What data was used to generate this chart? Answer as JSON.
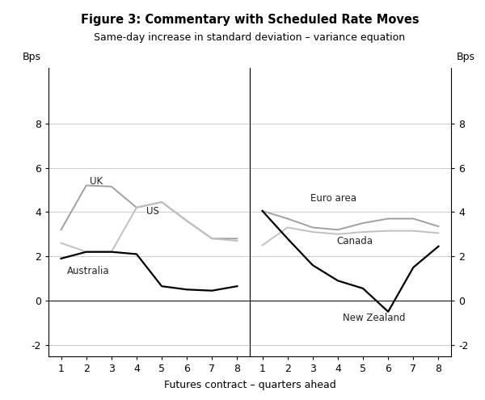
{
  "title": "Figure 3: Commentary with Scheduled Rate Moves",
  "subtitle": "Same-day increase in standard deviation – variance equation",
  "ylabel_left": "Bps",
  "ylabel_right": "Bps",
  "xlabel": "Futures contract – quarters ahead",
  "ylim": [
    -2.5,
    10.5
  ],
  "yticks": [
    -2,
    0,
    2,
    4,
    6,
    8
  ],
  "ytick_labels": [
    "-2",
    "0",
    "2",
    "4",
    "6",
    "8"
  ],
  "left_panel": {
    "x": [
      1,
      2,
      3,
      4,
      5,
      6,
      7,
      8
    ],
    "UK": [
      3.2,
      5.2,
      5.15,
      4.2,
      4.45,
      3.6,
      2.8,
      2.8
    ],
    "US": [
      2.6,
      2.2,
      2.2,
      4.2,
      4.45,
      3.6,
      2.8,
      2.7
    ],
    "Australia": [
      1.9,
      2.2,
      2.2,
      2.1,
      0.65,
      0.5,
      0.45,
      0.65
    ]
  },
  "right_panel": {
    "x": [
      1,
      2,
      3,
      4,
      5,
      6,
      7,
      8
    ],
    "Euro area": [
      4.05,
      3.7,
      3.3,
      3.2,
      3.5,
      3.7,
      3.7,
      3.35
    ],
    "Canada": [
      2.5,
      3.3,
      3.1,
      3.0,
      3.1,
      3.15,
      3.15,
      3.05
    ],
    "New Zealand": [
      4.05,
      2.8,
      1.6,
      0.9,
      0.55,
      -0.5,
      1.5,
      2.45
    ]
  },
  "colors": {
    "UK": "#a0a0a0",
    "US": "#c0c0c0",
    "Australia": "#000000",
    "Euro area": "#a0a0a0",
    "Canada": "#c0c0c0",
    "New Zealand": "#000000"
  },
  "background_color": "#ffffff",
  "grid_color": "#cccccc"
}
